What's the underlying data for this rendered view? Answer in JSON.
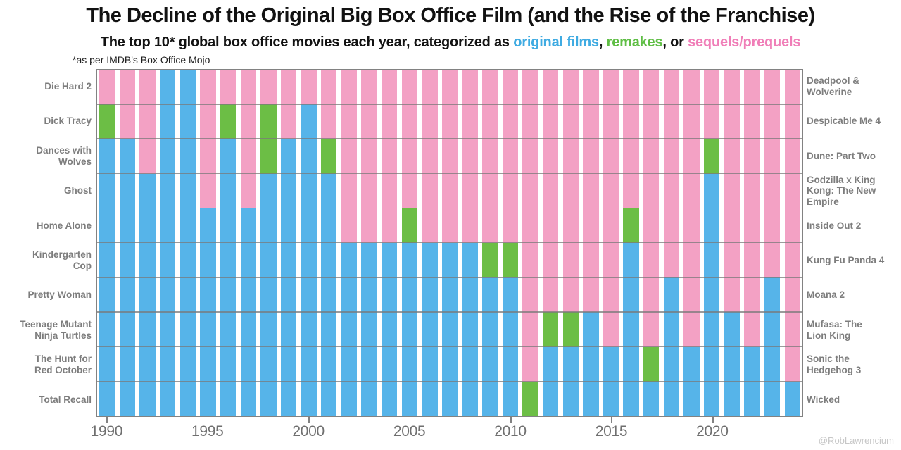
{
  "title": "The Decline of the Original Big Box Office Film (and the Rise of the Franchise)",
  "subtitle": {
    "prefix": "The top 10* global box office movies each year, categorized as ",
    "original_label": "original films",
    "sep1": ", ",
    "remake_label": "remakes",
    "sep2": ", or ",
    "sequel_label": "sequels/prequels"
  },
  "footnote": "*as per IMDB's Box Office Mojo",
  "watermark": "@RobLawrencium",
  "colors": {
    "bar_original": "#56B4E9",
    "bar_remake": "#6CBE45",
    "bar_sequel": "#F3A1C4",
    "text_original": "#3FABE2",
    "text_remake": "#5FBE45",
    "text_sequel": "#F07EB8",
    "movie_label_gray": "#7D7D7D",
    "year_label_gray": "#6F6F6F",
    "grid_gray": "#7A7A7A",
    "border_gray": "#828282",
    "tick_gray": "#828282",
    "watermark_gray": "#C7C7C7"
  },
  "left_axis_movies_1990": [
    "Die Hard 2",
    "Dick Tracy",
    "Dances with\nWolves",
    "Ghost",
    "Home Alone",
    "Kindergarten\nCop",
    "Pretty Woman",
    "Teenage Mutant\nNinja Turtles",
    "The Hunt for\nRed October",
    "Total Recall"
  ],
  "right_axis_movies_2024": [
    "Deadpool &\nWolverine",
    "Despicable Me 4",
    "Dune: Part Two",
    "Godzilla x King\nKong: The New\nEmpire",
    "Inside Out 2",
    "Kung Fu Panda 4",
    "Moana 2",
    "Mufasa: The\nLion King",
    "Sonic the\nHedgehog 3",
    "Wicked"
  ],
  "chart_data": {
    "type": "bar",
    "stacked": true,
    "title": "The Decline of the Original Big Box Office Film (and the Rise of the Franchise)",
    "subtitle": "The top 10* global box office movies each year, categorized as original films, remakes, or sequels/prequels",
    "units_per_bar": 10,
    "ylim": [
      0,
      10
    ],
    "grid": "horizontal lines every 1 film (10 rows), drawn over bars",
    "legend_position": "inline in subtitle (colored words)",
    "x": [
      1990,
      1991,
      1992,
      1993,
      1994,
      1995,
      1996,
      1997,
      1998,
      1999,
      2000,
      2001,
      2002,
      2003,
      2004,
      2005,
      2006,
      2007,
      2008,
      2009,
      2010,
      2011,
      2012,
      2013,
      2014,
      2015,
      2016,
      2017,
      2018,
      2019,
      2020,
      2021,
      2022,
      2023,
      2024
    ],
    "x_tick_labels": [
      "1990",
      "1995",
      "2000",
      "2005",
      "2010",
      "2015",
      "2020"
    ],
    "series": [
      {
        "name": "original films",
        "color": "#56B4E9",
        "stack_position": "bottom",
        "values": [
          8,
          8,
          7,
          10,
          10,
          6,
          8,
          6,
          7,
          8,
          9,
          7,
          5,
          5,
          5,
          5,
          5,
          5,
          5,
          4,
          4,
          0,
          2,
          2,
          3,
          2,
          5,
          1,
          4,
          2,
          7,
          3,
          2,
          4,
          1
        ]
      },
      {
        "name": "remakes",
        "color": "#6CBE45",
        "stack_position": "middle",
        "values": [
          1,
          0,
          0,
          0,
          0,
          0,
          1,
          0,
          2,
          0,
          0,
          1,
          0,
          0,
          0,
          1,
          0,
          0,
          0,
          1,
          1,
          1,
          1,
          1,
          0,
          0,
          1,
          1,
          0,
          0,
          1,
          0,
          0,
          0,
          0
        ]
      },
      {
        "name": "sequels/prequels",
        "color": "#F3A1C4",
        "stack_position": "top",
        "values": [
          1,
          2,
          3,
          0,
          0,
          4,
          1,
          4,
          1,
          2,
          1,
          2,
          5,
          5,
          5,
          4,
          5,
          5,
          5,
          5,
          5,
          9,
          7,
          7,
          7,
          8,
          4,
          8,
          6,
          8,
          2,
          7,
          8,
          6,
          9
        ]
      }
    ]
  }
}
